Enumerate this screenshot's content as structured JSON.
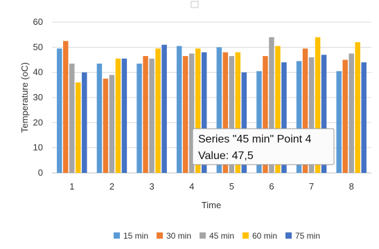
{
  "chart_data": {
    "type": "bar",
    "categories": [
      "1",
      "2",
      "3",
      "4",
      "5",
      "6",
      "7",
      "8"
    ],
    "series": [
      {
        "name": "15 min",
        "color": "#5b9bd5",
        "values": [
          49.5,
          43.5,
          43.5,
          50.5,
          50,
          40.5,
          44.5,
          40.5
        ]
      },
      {
        "name": "30 min",
        "color": "#ed7d31",
        "values": [
          52.5,
          37.5,
          46.5,
          46.5,
          48,
          46.5,
          49.5,
          45
        ]
      },
      {
        "name": "45 min",
        "color": "#a5a5a5",
        "values": [
          43.5,
          39,
          45.5,
          47.5,
          46.5,
          54,
          46,
          47.5
        ]
      },
      {
        "name": "60 min",
        "color": "#ffc000",
        "values": [
          36,
          45.5,
          49.5,
          49.5,
          48,
          50.5,
          54,
          52
        ]
      },
      {
        "name": "75 min",
        "color": "#4472c4",
        "values": [
          40,
          45.5,
          51,
          48,
          40,
          44,
          47,
          44
        ]
      }
    ],
    "ylim": [
      0,
      60
    ],
    "yticks": [
      0,
      10,
      20,
      30,
      40,
      50,
      60
    ],
    "xlabel": "Time",
    "ylabel": "Temperature (oC)",
    "grid": true,
    "legend_position": "bottom"
  },
  "tooltip": {
    "line1": "Series \"45 min\" Point 4",
    "line2": "Value: 47,5"
  }
}
